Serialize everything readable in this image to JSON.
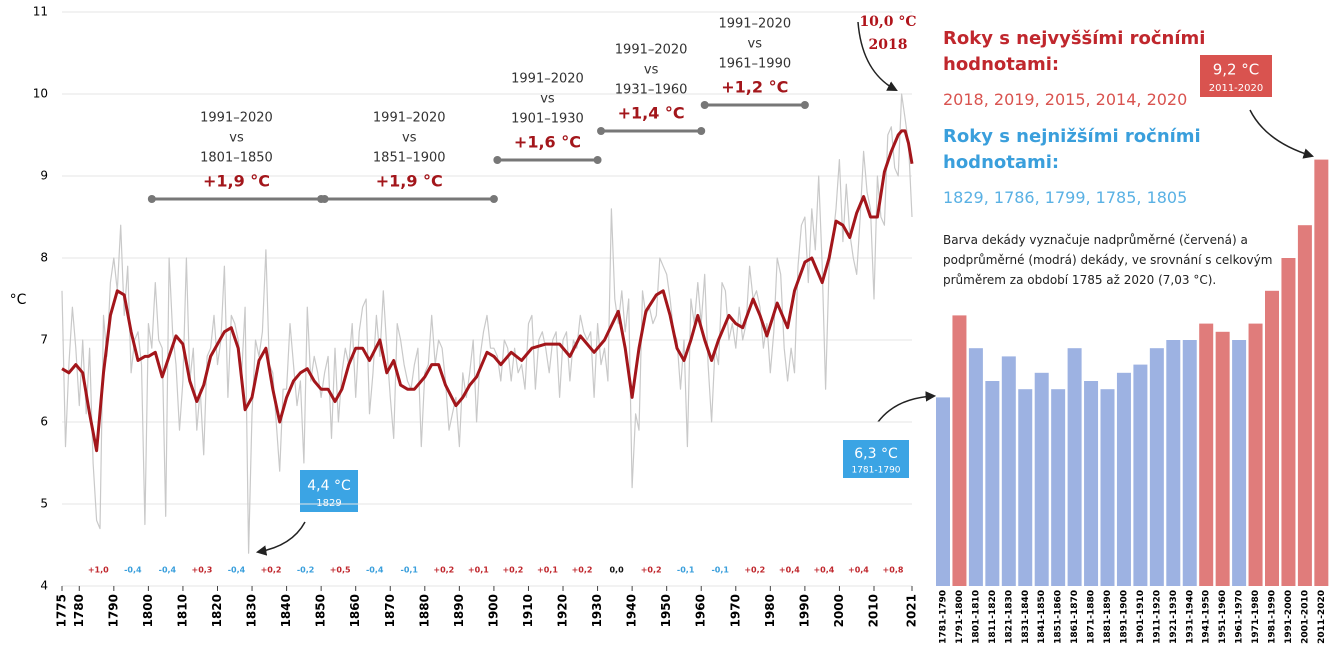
{
  "chart_data": [
    {
      "type": "line",
      "ylabel": "°C",
      "xlim": [
        1775,
        2021
      ],
      "ylim": [
        4,
        11
      ],
      "yticks": [
        4,
        5,
        6,
        7,
        8,
        9,
        10,
        11
      ],
      "grid": true,
      "xticks": [
        1775,
        1780,
        1790,
        1800,
        1810,
        1820,
        1830,
        1840,
        1850,
        1860,
        1870,
        1880,
        1890,
        1900,
        1910,
        1920,
        1930,
        1940,
        1950,
        1960,
        1970,
        1980,
        1990,
        2000,
        2010,
        2021
      ],
      "series": [
        {
          "color": "#c9c9c9",
          "x": [
            1775,
            1776,
            1777,
            1778,
            1779,
            1780,
            1781,
            1782,
            1783,
            1784,
            1785,
            1786,
            1787,
            1788,
            1789,
            1790,
            1791,
            1792,
            1793,
            1794,
            1795,
            1796,
            1797,
            1798,
            1799,
            1800,
            1801,
            1802,
            1803,
            1804,
            1805,
            1806,
            1807,
            1808,
            1809,
            1810,
            1811,
            1812,
            1813,
            1814,
            1815,
            1816,
            1817,
            1818,
            1819,
            1820,
            1821,
            1822,
            1823,
            1824,
            1825,
            1826,
            1827,
            1828,
            1829,
            1830,
            1831,
            1832,
            1833,
            1834,
            1835,
            1836,
            1837,
            1838,
            1839,
            1840,
            1841,
            1842,
            1843,
            1844,
            1845,
            1846,
            1847,
            1848,
            1849,
            1850,
            1851,
            1852,
            1853,
            1854,
            1855,
            1856,
            1857,
            1858,
            1859,
            1860,
            1861,
            1862,
            1863,
            1864,
            1865,
            1866,
            1867,
            1868,
            1869,
            1870,
            1871,
            1872,
            1873,
            1874,
            1875,
            1876,
            1877,
            1878,
            1879,
            1880,
            1881,
            1882,
            1883,
            1884,
            1885,
            1886,
            1887,
            1888,
            1889,
            1890,
            1891,
            1892,
            1893,
            1894,
            1895,
            1896,
            1897,
            1898,
            1899,
            1900,
            1901,
            1902,
            1903,
            1904,
            1905,
            1906,
            1907,
            1908,
            1909,
            1910,
            1911,
            1912,
            1913,
            1914,
            1915,
            1916,
            1917,
            1918,
            1919,
            1920,
            1921,
            1922,
            1923,
            1924,
            1925,
            1926,
            1927,
            1928,
            1929,
            1930,
            1931,
            1932,
            1933,
            1934,
            1935,
            1936,
            1937,
            1938,
            1939,
            1940,
            1941,
            1942,
            1943,
            1944,
            1945,
            1946,
            1947,
            1948,
            1949,
            1950,
            1951,
            1952,
            1953,
            1954,
            1955,
            1956,
            1957,
            1958,
            1959,
            1960,
            1961,
            1962,
            1963,
            1964,
            1965,
            1966,
            1967,
            1968,
            1969,
            1970,
            1971,
            1972,
            1973,
            1974,
            1975,
            1976,
            1977,
            1978,
            1979,
            1980,
            1981,
            1982,
            1983,
            1984,
            1985,
            1986,
            1987,
            1988,
            1989,
            1990,
            1991,
            1992,
            1993,
            1994,
            1995,
            1996,
            1997,
            1998,
            1999,
            2000,
            2001,
            2002,
            2003,
            2004,
            2005,
            2006,
            2007,
            2008,
            2009,
            2010,
            2011,
            2012,
            2013,
            2014,
            2015,
            2016,
            2017,
            2018,
            2019,
            2020,
            2021
          ],
          "values": [
            7.6,
            5.7,
            6.7,
            7.4,
            6.9,
            6.2,
            7.0,
            6.1,
            6.9,
            5.5,
            4.8,
            4.7,
            7.3,
            6.8,
            7.7,
            8.0,
            7.6,
            8.4,
            7.3,
            7.9,
            6.6,
            7.0,
            7.1,
            6.7,
            4.75,
            7.2,
            6.9,
            7.7,
            7.0,
            6.9,
            4.85,
            8.0,
            7.1,
            6.7,
            5.9,
            6.5,
            8.0,
            6.5,
            6.9,
            5.9,
            6.4,
            5.6,
            6.8,
            6.9,
            7.3,
            6.7,
            7.0,
            7.9,
            6.3,
            7.3,
            7.2,
            7.0,
            6.6,
            7.4,
            4.4,
            6.1,
            7.0,
            6.8,
            7.1,
            8.1,
            6.7,
            6.6,
            6.0,
            5.4,
            6.4,
            6.4,
            7.2,
            6.7,
            6.2,
            6.5,
            5.5,
            7.4,
            6.5,
            6.8,
            6.6,
            6.3,
            6.6,
            6.8,
            5.8,
            6.9,
            6.0,
            6.6,
            6.9,
            6.7,
            7.2,
            6.3,
            7.1,
            7.4,
            7.5,
            6.1,
            6.6,
            7.3,
            6.8,
            7.6,
            6.9,
            6.3,
            5.8,
            7.2,
            7.0,
            6.7,
            6.5,
            6.4,
            6.7,
            6.9,
            5.7,
            6.6,
            6.7,
            7.3,
            6.7,
            7.0,
            6.9,
            6.5,
            5.9,
            6.1,
            6.3,
            5.7,
            6.6,
            6.3,
            6.6,
            7.0,
            6.0,
            6.8,
            7.1,
            7.3,
            6.9,
            6.9,
            6.8,
            6.5,
            7.0,
            6.9,
            6.5,
            6.9,
            6.6,
            6.7,
            6.4,
            7.2,
            7.3,
            6.4,
            7.0,
            7.1,
            6.9,
            6.6,
            7.0,
            7.1,
            6.3,
            7.0,
            7.1,
            6.5,
            7.0,
            6.9,
            7.3,
            7.1,
            7.0,
            7.1,
            6.3,
            7.2,
            6.7,
            6.9,
            6.5,
            8.6,
            7.5,
            7.2,
            7.6,
            7.1,
            7.5,
            5.2,
            6.1,
            5.9,
            7.6,
            7.3,
            7.4,
            7.2,
            7.3,
            8.0,
            7.9,
            7.8,
            7.5,
            7.1,
            7.0,
            6.4,
            7.0,
            5.7,
            7.5,
            7.2,
            7.7,
            7.2,
            7.8,
            6.7,
            6.0,
            6.9,
            6.7,
            7.7,
            7.6,
            7.0,
            7.2,
            6.9,
            7.4,
            7.0,
            7.2,
            7.9,
            7.5,
            7.6,
            7.4,
            6.9,
            7.2,
            6.6,
            7.1,
            8.0,
            7.8,
            6.9,
            6.5,
            6.9,
            6.6,
            7.9,
            8.4,
            8.5,
            7.7,
            8.6,
            8.1,
            9.0,
            7.9,
            6.4,
            7.9,
            8.2,
            8.6,
            9.2,
            8.2,
            8.9,
            8.3,
            8.0,
            7.8,
            8.5,
            9.3,
            8.8,
            8.6,
            7.5,
            9.0,
            8.5,
            8.4,
            9.5,
            9.6,
            9.1,
            9.0,
            10.0,
            9.7,
            9.4,
            8.5
          ]
        },
        {
          "color": "#a3161b",
          "x": [
            1775,
            1777,
            1779,
            1781,
            1783,
            1785,
            1787,
            1789,
            1791,
            1793,
            1795,
            1797,
            1799,
            1800,
            1802,
            1804,
            1806,
            1808,
            1810,
            1812,
            1814,
            1816,
            1818,
            1820,
            1822,
            1824,
            1826,
            1828,
            1830,
            1832,
            1834,
            1836,
            1838,
            1840,
            1842,
            1844,
            1846,
            1848,
            1850,
            1852,
            1854,
            1856,
            1858,
            1860,
            1862,
            1864,
            1867,
            1869,
            1871,
            1873,
            1875,
            1877,
            1880,
            1882,
            1884,
            1886,
            1889,
            1891,
            1893,
            1895,
            1898,
            1900,
            1902,
            1905,
            1908,
            1911,
            1915,
            1919,
            1922,
            1925,
            1929,
            1932,
            1936,
            1938,
            1940,
            1942,
            1944,
            1947,
            1949,
            1951,
            1953,
            1955,
            1957,
            1959,
            1961,
            1963,
            1965,
            1968,
            1970,
            1972,
            1975,
            1977,
            1979,
            1982,
            1985,
            1987,
            1990,
            1992,
            1995,
            1997,
            1999,
            2001,
            2003,
            2005,
            2007,
            2009,
            2011,
            2013,
            2015,
            2017,
            2018,
            2019,
            2020,
            2021
          ],
          "values": [
            6.65,
            6.6,
            6.7,
            6.6,
            6.1,
            5.65,
            6.6,
            7.3,
            7.6,
            7.55,
            7.1,
            6.75,
            6.8,
            6.8,
            6.85,
            6.55,
            6.8,
            7.05,
            6.95,
            6.5,
            6.25,
            6.45,
            6.8,
            6.95,
            7.1,
            7.15,
            6.9,
            6.15,
            6.3,
            6.75,
            6.9,
            6.4,
            6.0,
            6.3,
            6.5,
            6.6,
            6.65,
            6.5,
            6.4,
            6.4,
            6.25,
            6.4,
            6.7,
            6.9,
            6.9,
            6.75,
            7.0,
            6.6,
            6.75,
            6.45,
            6.4,
            6.4,
            6.55,
            6.7,
            6.7,
            6.45,
            6.2,
            6.3,
            6.45,
            6.55,
            6.85,
            6.8,
            6.7,
            6.85,
            6.75,
            6.9,
            6.95,
            6.95,
            6.8,
            7.05,
            6.85,
            7.0,
            7.35,
            6.9,
            6.3,
            6.9,
            7.35,
            7.55,
            7.6,
            7.3,
            6.9,
            6.75,
            7.0,
            7.3,
            7.0,
            6.75,
            7.0,
            7.3,
            7.2,
            7.15,
            7.5,
            7.3,
            7.05,
            7.45,
            7.15,
            7.6,
            7.95,
            8.0,
            7.7,
            8.0,
            8.45,
            8.4,
            8.25,
            8.55,
            8.75,
            8.5,
            8.5,
            9.05,
            9.3,
            9.5,
            9.55,
            9.55,
            9.4,
            9.15
          ]
        }
      ],
      "comparisons": [
        {
          "lines": [
            "1991–2020",
            "vs",
            "1801–1850"
          ],
          "difference": "+1,9 °C",
          "from": 1801,
          "to": 1850
        },
        {
          "lines": [
            "1991–2020",
            "vs",
            "1851–1900"
          ],
          "difference": "+1,9 °C",
          "from": 1851,
          "to": 1900
        },
        {
          "lines": [
            "1991–2020",
            "vs",
            "1901–1930"
          ],
          "difference": "+1,6 °C",
          "from": 1901,
          "to": 1930
        },
        {
          "lines": [
            "1991–2020",
            "vs",
            "1931–1960"
          ],
          "difference": "+1,4 °C",
          "from": 1931,
          "to": 1960
        },
        {
          "lines": [
            "1991–2020",
            "vs",
            "1961–1990"
          ],
          "difference": "+1,2 °C",
          "from": 1961,
          "to": 1990
        }
      ],
      "anomalies": {
        "values": [
          1.0,
          -0.4,
          -0.4,
          0.3,
          -0.4,
          0.2,
          -0.2,
          0.5,
          -0.4,
          -0.1,
          0.2,
          0.1,
          0.2,
          0.1,
          0.2,
          0.0,
          0.2,
          -0.1,
          -0.1,
          0.2,
          0.4,
          0.4,
          0.4,
          0.8
        ],
        "value_labels": [
          "+1,0",
          "-0,4",
          "-0,4",
          "+0,3",
          "-0,4",
          "+0,2",
          "-0,2",
          "+0,5",
          "-0,4",
          "-0,1",
          "+0,2",
          "+0,1",
          "+0,2",
          "+0,1",
          "+0,2",
          "0,0",
          "+0,2",
          "-0,1",
          "-0,1",
          "+0,2",
          "+0,4",
          "+0,4",
          "+0,4",
          "+0,8"
        ]
      },
      "callouts": [
        {
          "label": "10,0 °C",
          "sublabel": "2018"
        },
        {
          "label": "4,4 °C",
          "sublabel": "1829"
        }
      ],
      "highest": {
        "title": "Roky s nejvyššími ročními hodnotami:",
        "years": "2018, 2019, 2015, 2014, 2020"
      },
      "lowest": {
        "title": "Roky s nejnižšími ročními hodnotami:",
        "years": "1829, 1786, 1799, 1785, 1805"
      }
    },
    {
      "type": "bar",
      "ylim": [
        4,
        11
      ],
      "categories": [
        "1781-1790",
        "1791-1800",
        "1801-1810",
        "1811-1820",
        "1821-1830",
        "1831-1840",
        "1841-1850",
        "1851-1860",
        "1861-1870",
        "1871-1880",
        "1881-1890",
        "1891-1900",
        "1901-1910",
        "1911-1920",
        "1921-1930",
        "1931-1940",
        "1941-1950",
        "1951-1960",
        "1961-1970",
        "1971-1980",
        "1981-1990",
        "1991-2000",
        "2001-2010",
        "2011-2020"
      ],
      "values": [
        6.3,
        7.3,
        6.9,
        6.5,
        6.8,
        6.4,
        6.6,
        6.4,
        6.9,
        6.5,
        6.4,
        6.6,
        6.7,
        6.9,
        7.0,
        7.0,
        7.2,
        7.1,
        7.0,
        7.2,
        7.6,
        8.0,
        8.4,
        9.2
      ],
      "mean": 7.03,
      "colors": {
        "above": "#e07c7b",
        "below": "#9db2e2"
      },
      "note": "Barva dekády vyznačuje nadprůměrné (červená) a podprůměrné (modrá) dekády, ve srovnání s celkovým průměrem za období 1785 až 2020 (7,03 °C).",
      "callouts": [
        {
          "label": "9,2 °C",
          "sublabel": "2011-2020"
        },
        {
          "label": "6,3 °C",
          "sublabel": "1781-1790"
        }
      ]
    }
  ]
}
